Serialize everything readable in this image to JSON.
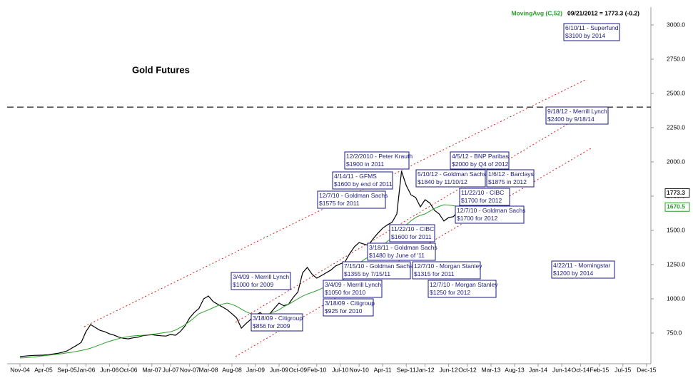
{
  "chart_data": {
    "type": "line",
    "title": "Gold Futures",
    "indicator_label": "MovingAvg (C,52)",
    "header_text": "09/21/2012 = 1773.3 (-0.2)",
    "x": [
      "Nov-04",
      "Dec-04",
      "Jan-05",
      "Feb-05",
      "Mar-05",
      "Apr-05",
      "May-05",
      "Jun-05",
      "Jul-05",
      "Aug-05",
      "Sep-05",
      "Oct-05",
      "Nov-05",
      "Dec-05",
      "Jan-06",
      "Feb-06",
      "Mar-06",
      "Apr-06",
      "May-06",
      "Jun-06",
      "Jul-06",
      "Aug-06",
      "Sep-06",
      "Oct-06",
      "Nov-06",
      "Dec-06",
      "Jan-07",
      "Feb-07",
      "Mar-07",
      "Apr-07",
      "May-07",
      "Jun-07",
      "Jul-07",
      "Aug-07",
      "Sep-07",
      "Oct-07",
      "Nov-07",
      "Dec-07",
      "Jan-08",
      "Feb-08",
      "Mar-08",
      "Apr-08",
      "May-08",
      "Jun-08",
      "Jul-08",
      "Aug-08",
      "Sep-08",
      "Oct-08",
      "Nov-08",
      "Dec-08",
      "Jan-09",
      "Feb-09",
      "Mar-09",
      "Apr-09",
      "May-09",
      "Jun-09",
      "Jul-09",
      "Aug-09",
      "Sep-09",
      "Oct-09",
      "Nov-09",
      "Dec-09",
      "Jan-10",
      "Feb-10",
      "Mar-10",
      "Apr-10",
      "May-10",
      "Jun-10",
      "Jul-10",
      "Aug-10",
      "Sep-10",
      "Oct-10",
      "Nov-10",
      "Dec-10",
      "Jan-11",
      "Feb-11",
      "Mar-11",
      "Apr-11",
      "May-11",
      "Jun-11",
      "Jul-11",
      "Aug-11",
      "Sep-11",
      "Oct-11",
      "Nov-11",
      "Dec-11",
      "Jan-12",
      "Feb-12",
      "Mar-12",
      "Apr-12",
      "May-12",
      "Jun-12",
      "Jul-12",
      "Aug-12",
      "Sep-12",
      "Oct-12",
      "Nov-12",
      "Dec-12",
      "Jan-13",
      "Feb-13",
      "Mar-13",
      "Apr-13",
      "May-13",
      "Jun-13",
      "Jul-13",
      "Aug-13",
      "Sep-13",
      "Oct-13",
      "Nov-13",
      "Dec-13",
      "Jan-14",
      "Feb-14",
      "Mar-14",
      "Apr-14",
      "May-14",
      "Jun-14",
      "Jul-14",
      "Aug-14",
      "Sep-14",
      "Oct-14",
      "Nov-14",
      "Dec-14",
      "Jan-15",
      "Feb-15",
      "Mar-15",
      "Apr-15",
      "May-15",
      "Jun-15",
      "Jul-15",
      "Aug-15",
      "Sep-15",
      "Oct-15",
      "Nov-15",
      "Dec-15"
    ],
    "xticks": [
      "Nov-04",
      "Apr-05",
      "Sep-05",
      "Jan-06",
      "Jun-06",
      "Oct-06",
      "Mar-07",
      "Jul-07",
      "Nov-07",
      "Mar-08",
      "Aug-08",
      "Jan-09",
      "Jun-09",
      "Oct-09",
      "Feb-10",
      "Jul-10",
      "Nov-10",
      "Apr-11",
      "Sep-11",
      "Jan-12",
      "Jun-12",
      "Oct-12",
      "Mar-13",
      "Aug-13",
      "Jan-14",
      "Jun-14",
      "Oct-14",
      "Feb-15",
      "Jul-15",
      "Dec-15"
    ],
    "series": [
      {
        "name": "Gold Futures",
        "color": "#000000",
        "values": [
          578,
          582,
          585,
          587,
          588,
          589,
          592,
          597,
          602,
          610,
          620,
          640,
          660,
          682,
          760,
          812,
          790,
          770,
          760,
          745,
          735,
          720,
          712,
          708,
          715,
          720,
          730,
          735,
          738,
          734,
          730,
          728,
          740,
          734,
          760,
          800,
          860,
          900,
          930,
          1000,
          1021,
          980,
          960,
          940,
          920,
          891,
          860,
          786,
          820,
          850,
          880,
          900,
          870,
          890,
          930,
          969,
          950,
          960,
          1010,
          1050,
          1190,
          1229,
          1180,
          1151,
          1170,
          1190,
          1210,
          1240,
          1255,
          1270,
          1330,
          1380,
          1411,
          1400,
          1390,
          1440,
          1480,
          1516,
          1540,
          1560,
          1620,
          1932,
          1828,
          1760,
          1740,
          1672,
          1724,
          1700,
          1646,
          1620,
          1568,
          1594,
          1600,
          1640,
          1773.3,
          null,
          null,
          null,
          null,
          null,
          null,
          null,
          null,
          null,
          null,
          null,
          null,
          null,
          null,
          null,
          null,
          null,
          null,
          null,
          null,
          null,
          null,
          null,
          null,
          null,
          null,
          null,
          null,
          null,
          null,
          null,
          null,
          null,
          null,
          null,
          null,
          null,
          null,
          null
        ]
      },
      {
        "name": "MovingAvg (C,52)",
        "color": "#2aa02a",
        "values": [
          568,
          570,
          573,
          576,
          580,
          584,
          588,
          592,
          596,
          600,
          605,
          610,
          616,
          623,
          630,
          640,
          652,
          665,
          678,
          690,
          700,
          710,
          718,
          724,
          729,
          732,
          734,
          737,
          740,
          745,
          750,
          755,
          760,
          772,
          790,
          810,
          835,
          862,
          891,
          905,
          920,
          935,
          950,
          962,
          969,
          960,
          945,
          925,
          905,
          891,
          885,
          882,
          885,
          892,
          905,
          920,
          943,
          960,
          980,
          1000,
          1020,
          1035,
          1047,
          1060,
          1075,
          1090,
          1108,
          1118,
          1125,
          1150,
          1180,
          1220,
          1260,
          1285,
          1307,
          1330,
          1360,
          1390,
          1420,
          1445,
          1463,
          1500,
          1540,
          1570,
          1595,
          1610,
          1620,
          1640,
          1660,
          1675,
          1687,
          1685,
          1680,
          1675,
          1670.5,
          null,
          null,
          null,
          null,
          null,
          null,
          null,
          null,
          null,
          null,
          null,
          null,
          null,
          null,
          null,
          null,
          null,
          null,
          null,
          null,
          null,
          null,
          null,
          null,
          null,
          null,
          null,
          null,
          null,
          null,
          null,
          null,
          null,
          null,
          null,
          null,
          null,
          null,
          null
        ]
      }
    ],
    "ylim": [
      550,
      3100
    ],
    "yticks": [
      {
        "value": 750,
        "label": "750.0"
      },
      {
        "value": 1000,
        "label": "1000.0"
      },
      {
        "value": 1250,
        "label": "1250.0"
      },
      {
        "value": 1500,
        "label": "1500.0"
      },
      {
        "value": 1750,
        "label": "1750.0"
      },
      {
        "value": 2000,
        "label": "2000.0"
      },
      {
        "value": 2250,
        "label": "2250.0"
      },
      {
        "value": 2500,
        "label": "2500.0"
      },
      {
        "value": 2750,
        "label": "2750.0"
      },
      {
        "value": 3000,
        "label": "3000.0"
      }
    ],
    "reference_line": 2400,
    "annotations": [
      [
        "6/10/11 - Superfund",
        "$3100 by 2014"
      ],
      [
        "9/18/12 - Merrill Lynch",
        "$2400 by 9/18/14"
      ],
      [
        "12/2/2010 - Peter Krauth",
        "$1900 in 2011"
      ],
      [
        "4/5/12 - BNP Paribas",
        "$2000 by Q4 of 2012"
      ],
      [
        "4/14/11 - GFMS",
        "$1600 by end of 2011"
      ],
      [
        "5/10/12 - Goldman Sachs",
        "$1840 by 11/10/12"
      ],
      [
        "1/6/12 - Barclays",
        "$1875 in 2012"
      ],
      [
        "12/7/10 - Goldman Sachs",
        "$1575 for 2011"
      ],
      [
        "11/22/10 - CIBC",
        "$1700 for 2012"
      ],
      [
        "12/7/10 - Goldman Sachs",
        "$1700 for 2012"
      ],
      [
        "11/22/10 - CIBC",
        "$1600 for 2011"
      ],
      [
        "3/18/11 - Goldman Sachs",
        "$1480 by June of '11"
      ],
      [
        "7/15/10 - Goldman Sachs",
        "$1355 by 7/15/11"
      ],
      [
        "12/7/10 - Morgan Stanley",
        "$1315  for 2011"
      ],
      [
        "4/22/11 - Morningstar",
        "$1200 by 2014"
      ],
      [
        "3/4/09 - Merrill Lynch",
        "$1000 for 2009"
      ],
      [
        "3/4/09 - Merrill Lynch",
        "$1050 for 2010"
      ],
      [
        "12/7/10 - Morgan Stanley",
        "$1250 for 2012"
      ],
      [
        "3/18/09 - Citigroup",
        "$925 for 2010"
      ],
      [
        "3/18/09 - Citigroup",
        "$856 for 2009"
      ]
    ]
  }
}
